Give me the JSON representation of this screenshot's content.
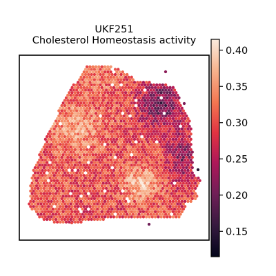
{
  "chart_data": {
    "type": "heatmap",
    "title_lines": [
      "UKF251",
      "Cholesterol Homeostasis activity"
    ],
    "xlabel": "",
    "ylabel": "",
    "grid": false,
    "legend": "colorbar-right",
    "colormap": "rocket",
    "color_range": [
      0.115,
      0.415
    ],
    "colorbar_ticks": [
      {
        "value": 0.15,
        "label": "0.15"
      },
      {
        "value": 0.2,
        "label": "0.20"
      },
      {
        "value": 0.25,
        "label": "0.25"
      },
      {
        "value": 0.3,
        "label": "0.30"
      },
      {
        "value": 0.35,
        "label": "0.35"
      },
      {
        "value": 0.4,
        "label": "0.40"
      }
    ],
    "regions": [
      {
        "area": "upper-right edge",
        "value": 0.19
      },
      {
        "area": "right middle",
        "value": 0.22
      },
      {
        "area": "center-left",
        "value": 0.36
      },
      {
        "area": "lower-right center",
        "value": 0.38
      },
      {
        "area": "lower-left",
        "value": 0.31
      },
      {
        "area": "top",
        "value": 0.33
      }
    ],
    "colorbar_colors": [
      "#03051a",
      "#35193e",
      "#701f57",
      "#ad1759",
      "#e13342",
      "#f37651",
      "#f6b48f",
      "#faebdd"
    ]
  }
}
